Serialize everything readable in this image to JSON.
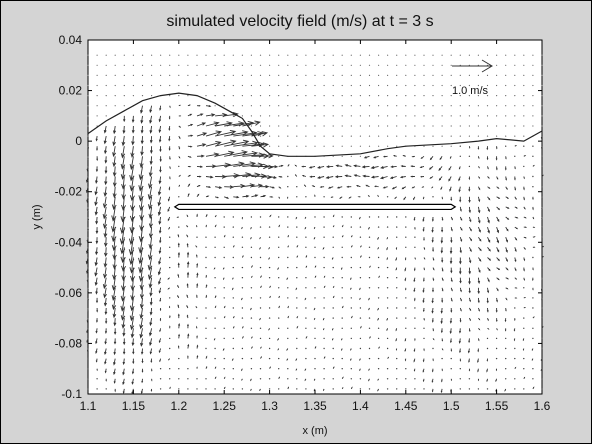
{
  "chart_data": {
    "type": "quiver",
    "title": "simulated velocity field (m/s) at t =     3     s",
    "xlabel": "x (m)",
    "ylabel": "y (m)",
    "xlim": [
      1.1,
      1.6
    ],
    "ylim": [
      -0.1,
      0.04
    ],
    "x_ticks": [
      "1.1",
      "1.15",
      "1.2",
      "1.25",
      "1.3",
      "1.35",
      "1.4",
      "1.45",
      "1.5",
      "1.55",
      "1.6"
    ],
    "y_ticks": [
      "0.04",
      "0.02",
      "0",
      "-0.02",
      "-0.04",
      "-0.06",
      "-0.08",
      "-0.1"
    ],
    "reference_arrow_label": "1.0 m/s",
    "reference_arrow_speed": 1.0,
    "grid": false,
    "free_surface": [
      [
        1.1,
        0.003
      ],
      [
        1.12,
        0.008
      ],
      [
        1.14,
        0.012
      ],
      [
        1.16,
        0.016
      ],
      [
        1.18,
        0.018
      ],
      [
        1.2,
        0.019
      ],
      [
        1.22,
        0.018
      ],
      [
        1.24,
        0.015
      ],
      [
        1.26,
        0.011
      ],
      [
        1.27,
        0.009
      ],
      [
        1.28,
        0.004
      ],
      [
        1.29,
        -0.002
      ],
      [
        1.3,
        -0.005
      ],
      [
        1.32,
        -0.006
      ],
      [
        1.35,
        -0.006
      ],
      [
        1.4,
        -0.005
      ],
      [
        1.43,
        -0.003
      ],
      [
        1.45,
        -0.002
      ],
      [
        1.5,
        -0.001
      ],
      [
        1.53,
        0.0
      ],
      [
        1.55,
        0.001
      ],
      [
        1.58,
        0.0
      ],
      [
        1.6,
        0.004
      ]
    ],
    "plate": {
      "x": [
        1.2,
        1.5
      ],
      "y": [
        -0.027,
        -0.025
      ]
    },
    "vector_grid": {
      "x_start": 1.1,
      "x_end": 1.6,
      "dx": 0.01,
      "y_start": -0.098,
      "y_end": 0.036,
      "dy": 0.004
    },
    "notable_vectors": [
      {
        "x": 1.25,
        "y": 0.012,
        "u": 0.45,
        "v": 0.08
      },
      {
        "x": 1.27,
        "y": 0.006,
        "u": 0.4,
        "v": 0.15
      },
      {
        "x": 1.23,
        "y": -0.008,
        "u": 0.35,
        "v": 0.0
      },
      {
        "x": 1.12,
        "y": -0.03,
        "u": -0.05,
        "v": -0.35
      },
      {
        "x": 1.3,
        "y": -0.012,
        "u": -0.15,
        "v": 0.0
      }
    ]
  }
}
